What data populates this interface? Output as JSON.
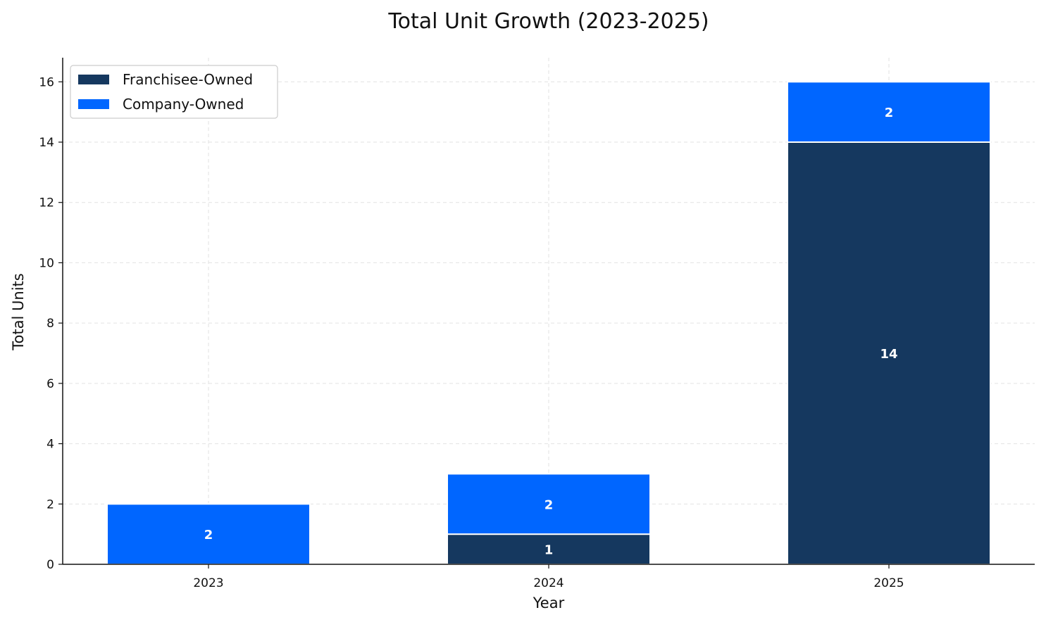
{
  "chart_data": {
    "type": "bar",
    "stacked": true,
    "title": "Total Unit Growth (2023-2025)",
    "xlabel": "Year",
    "ylabel": "Total Units",
    "categories": [
      "2023",
      "2024",
      "2025"
    ],
    "series": [
      {
        "name": "Franchisee-Owned",
        "values": [
          0,
          1,
          14
        ],
        "color": "#15385f"
      },
      {
        "name": "Company-Owned",
        "values": [
          2,
          2,
          2
        ],
        "color": "#0066ff"
      }
    ],
    "ylim": [
      0,
      16.8
    ],
    "yticks": [
      0,
      2,
      4,
      6,
      8,
      10,
      12,
      14,
      16
    ],
    "grid": true,
    "legend_position": "top-left"
  }
}
